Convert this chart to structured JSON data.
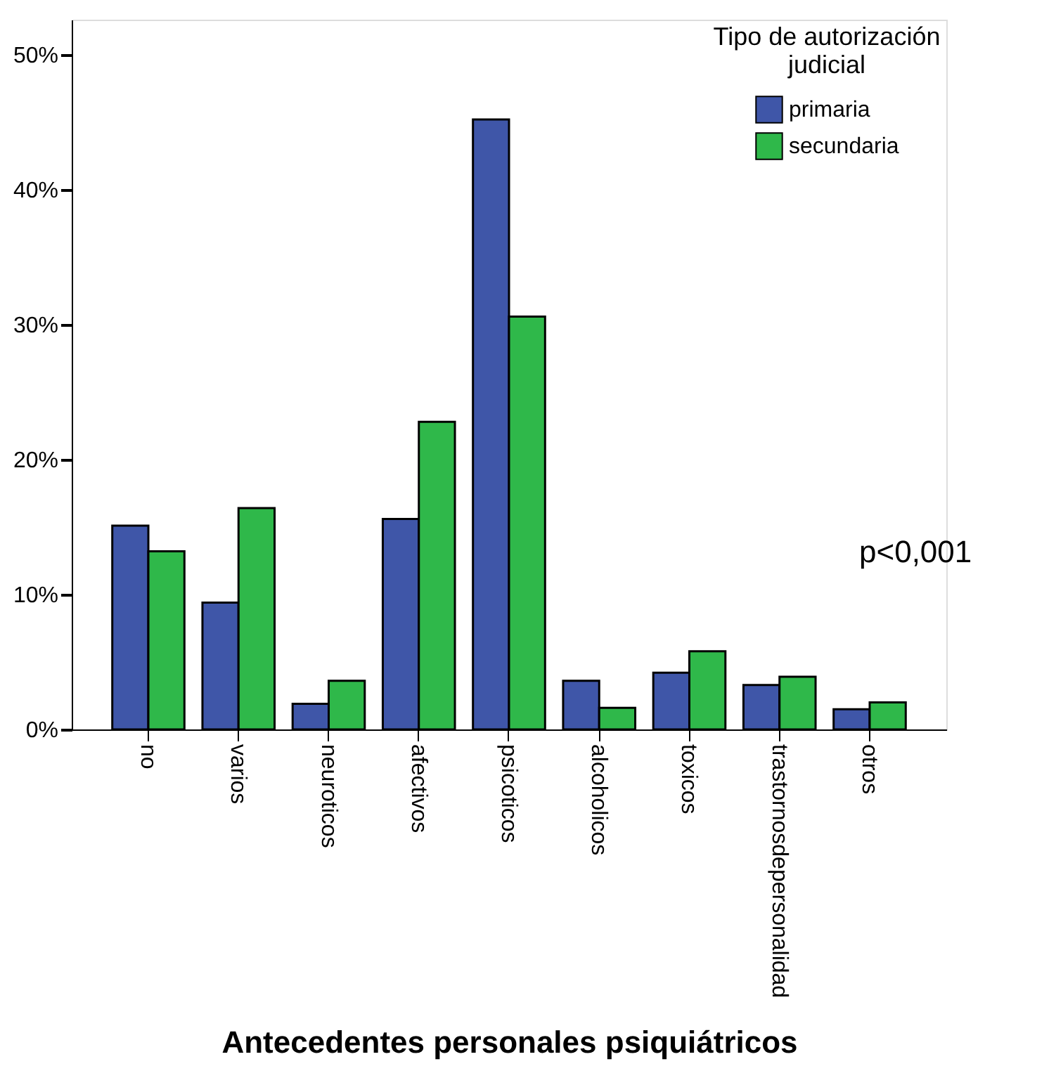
{
  "chart_data": {
    "type": "bar",
    "xlabel": "Antecedentes personales psiquiátricos",
    "legend_title": "Tipo de autorización judicial",
    "legend": "top right",
    "grid": false,
    "categories": [
      "no",
      "varios",
      "neuroticos",
      "afectivos",
      "psicoticos",
      "alcoholicos",
      "toxicos",
      "trastornosdepersonalidad",
      "otros"
    ],
    "series": [
      {
        "name": "primaria",
        "color": "#3f56a8",
        "values": [
          15.1,
          9.4,
          1.9,
          15.6,
          45.2,
          3.6,
          4.2,
          3.3,
          1.5
        ]
      },
      {
        "name": "secundaria",
        "color": "#2fb84a",
        "values": [
          13.2,
          16.4,
          3.6,
          22.8,
          30.6,
          1.6,
          5.8,
          3.9,
          2.0
        ]
      }
    ],
    "ylim": [
      0,
      52.6
    ],
    "yticks": [
      {
        "value": 0,
        "label": "0%"
      },
      {
        "value": 10,
        "label": "10%"
      },
      {
        "value": 20,
        "label": "20%"
      },
      {
        "value": 30,
        "label": "30%"
      },
      {
        "value": 40,
        "label": "40%"
      },
      {
        "value": 50,
        "label": "50%"
      }
    ],
    "annotations": [
      "p<0,001"
    ]
  }
}
